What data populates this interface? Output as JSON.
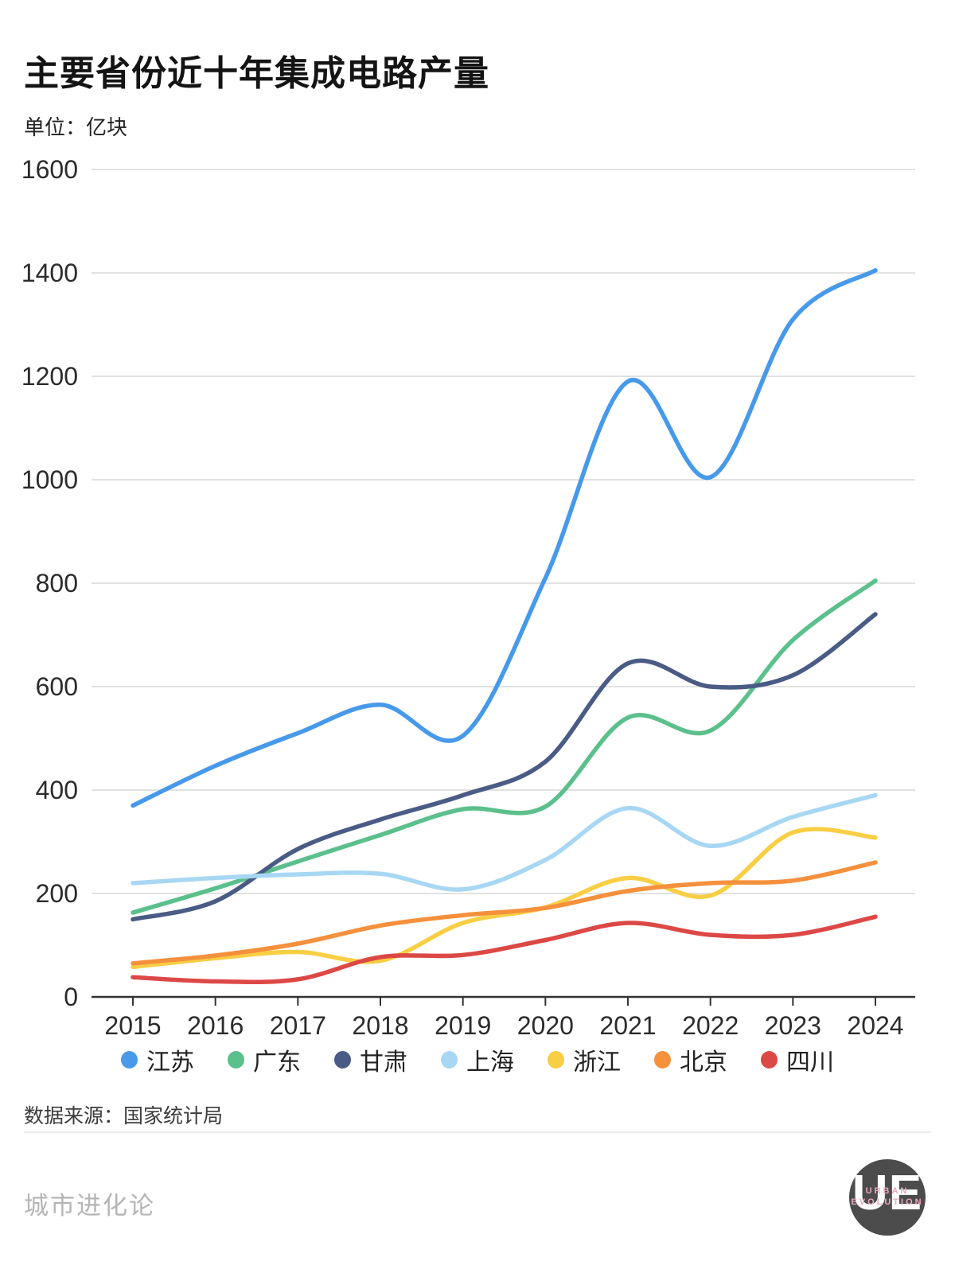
{
  "header": {
    "title": "主要省份近十年集成电路产量",
    "unit_label": "单位：亿块"
  },
  "chart_data": {
    "type": "line",
    "title": "主要省份近十年集成电路产量",
    "ylabel": "亿块",
    "x": [
      2015,
      2016,
      2017,
      2018,
      2019,
      2020,
      2021,
      2022,
      2023,
      2024
    ],
    "ylim": [
      0,
      1600
    ],
    "y_tick_step": 200,
    "grid": "horizontal",
    "legend_position": "bottom",
    "colors": {
      "gridline": "#d9d9d9",
      "axis": "#333333",
      "tick_label": "#2b2b2b"
    },
    "series": [
      {
        "name": "江苏",
        "key": "jiangsu",
        "color": "#4799EA",
        "values": [
          370,
          447,
          510,
          565,
          505,
          810,
          1190,
          1005,
          1310,
          1405
        ]
      },
      {
        "name": "广东",
        "key": "guangdong",
        "color": "#5BC08C",
        "values": [
          163,
          210,
          262,
          313,
          363,
          368,
          540,
          515,
          690,
          805
        ]
      },
      {
        "name": "甘肃",
        "key": "gansu",
        "color": "#4A5C85",
        "values": [
          150,
          185,
          286,
          343,
          390,
          455,
          645,
          600,
          622,
          740
        ]
      },
      {
        "name": "上海",
        "key": "shanghai",
        "color": "#A8D7F3",
        "values": [
          220,
          230,
          237,
          238,
          208,
          265,
          365,
          292,
          348,
          390
        ]
      },
      {
        "name": "浙江",
        "key": "zhejiang",
        "color": "#F8CE44",
        "values": [
          58,
          75,
          87,
          70,
          143,
          173,
          230,
          196,
          318,
          308
        ]
      },
      {
        "name": "北京",
        "key": "beijing",
        "color": "#F5903C",
        "values": [
          65,
          80,
          103,
          138,
          158,
          172,
          205,
          220,
          225,
          260
        ]
      },
      {
        "name": "四川",
        "key": "sichuan",
        "color": "#DC4845",
        "values": [
          38,
          30,
          34,
          77,
          81,
          110,
          143,
          120,
          120,
          155
        ]
      }
    ]
  },
  "footer": {
    "source": "数据来源：国家统计局",
    "brand": "城市进化论",
    "logo": {
      "monogram": "UE",
      "sub_line1": "URBAN",
      "sub_line2": "EVOLUTION"
    }
  }
}
